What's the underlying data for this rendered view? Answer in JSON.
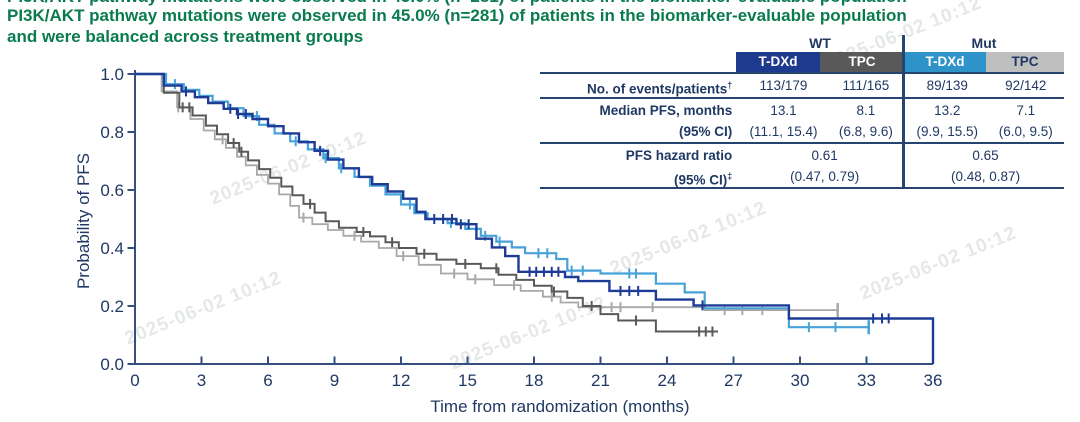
{
  "title": {
    "line1": "PI3K/AKT pathway mutations were observed in 45.0% (n=281) of patients in the biomarker-evaluable population",
    "line2": "and were balanced across treatment groups"
  },
  "watermark": {
    "text": "2025-06-02 10:12"
  },
  "table": {
    "group_headers": [
      {
        "label": "WT"
      },
      {
        "label": "Mut"
      }
    ],
    "col_headers": [
      {
        "label": "T-DXd",
        "bg": "#1e3a8f",
        "fg": "#ffffff"
      },
      {
        "label": "TPC",
        "bg": "#595959",
        "fg": "#ffffff"
      },
      {
        "label": "T-DXd",
        "bg": "#2d93c8",
        "fg": "#ffffff"
      },
      {
        "label": "TPC",
        "bg": "#bfbfbf",
        "fg": "#1f3864"
      }
    ],
    "rows": [
      {
        "label": "No. of events/patients",
        "sup": "†",
        "values": [
          "113/179",
          "111/165",
          "89/139",
          "92/142"
        ]
      },
      {
        "label": "Median PFS, months",
        "label2": "(95% CI)",
        "values": [
          "13.1",
          "8.1",
          "13.2",
          "7.1"
        ],
        "values2": [
          "(11.1, 15.4)",
          "(6.8, 9.6)",
          "(9.9, 15.5)",
          "(6.0, 9.5)"
        ]
      },
      {
        "label": "PFS hazard ratio",
        "label2": "(95% CI)",
        "sup": "‡",
        "values": [
          "0.61",
          "0.65"
        ],
        "values2": [
          "(0.47, 0.79)",
          "(0.48, 0.87)"
        ]
      }
    ]
  },
  "chart_data": {
    "type": "line",
    "subtype": "kaplan-meier-step",
    "title": "",
    "xlabel": "Time from randomization (months)",
    "ylabel": "Probability of PFS",
    "xlim": [
      0,
      36
    ],
    "ylim": [
      0.0,
      1.0
    ],
    "xticks": [
      0,
      3,
      6,
      9,
      12,
      15,
      18,
      21,
      24,
      27,
      30,
      33,
      36
    ],
    "yticks": [
      0.0,
      0.2,
      0.4,
      0.6,
      0.8,
      1.0
    ],
    "grid": false,
    "legend": "none (table serves as legend)",
    "axis_color": "#35507f",
    "label_color": "#1f3864",
    "series": [
      {
        "id": "tpc-mut",
        "name": "TPC (Mut)",
        "color": "#a8a8a8",
        "median_pfs_months": 7.1,
        "points": [
          [
            0,
            1.0
          ],
          [
            1.2,
            0.94
          ],
          [
            1.9,
            0.885
          ],
          [
            2.5,
            0.845
          ],
          [
            3.1,
            0.805
          ],
          [
            3.6,
            0.775
          ],
          [
            4.1,
            0.745
          ],
          [
            4.6,
            0.715
          ],
          [
            5.0,
            0.685
          ],
          [
            5.5,
            0.652
          ],
          [
            6.0,
            0.622
          ],
          [
            6.5,
            0.585
          ],
          [
            7.0,
            0.545
          ],
          [
            7.4,
            0.505
          ],
          [
            8.0,
            0.482
          ],
          [
            8.7,
            0.462
          ],
          [
            9.4,
            0.442
          ],
          [
            10.2,
            0.422
          ],
          [
            11.0,
            0.4
          ],
          [
            11.8,
            0.372
          ],
          [
            12.8,
            0.342
          ],
          [
            13.8,
            0.312
          ],
          [
            15.0,
            0.292
          ],
          [
            16.2,
            0.272
          ],
          [
            17.4,
            0.252
          ],
          [
            18.4,
            0.232
          ],
          [
            19.2,
            0.212
          ],
          [
            20.0,
            0.196
          ],
          [
            25.7,
            0.186
          ]
        ],
        "end": 31.7,
        "end_tick": true,
        "censor_times": [
          1.95,
          3.95,
          7.6,
          9.9,
          12.1,
          14.4,
          15.35,
          17.1,
          18.8,
          21.5,
          21.9,
          23.35,
          26.6,
          27.4,
          28.3
        ]
      },
      {
        "id": "tpc-wt",
        "name": "TPC (WT)",
        "color": "#595959",
        "median_pfs_months": 8.1,
        "points": [
          [
            0,
            1.0
          ],
          [
            1.3,
            0.935
          ],
          [
            2.0,
            0.885
          ],
          [
            2.6,
            0.857
          ],
          [
            3.2,
            0.822
          ],
          [
            3.7,
            0.792
          ],
          [
            4.2,
            0.762
          ],
          [
            4.7,
            0.732
          ],
          [
            5.1,
            0.702
          ],
          [
            5.6,
            0.672
          ],
          [
            6.1,
            0.642
          ],
          [
            6.6,
            0.612
          ],
          [
            7.1,
            0.582
          ],
          [
            7.6,
            0.552
          ],
          [
            8.1,
            0.522
          ],
          [
            8.6,
            0.492
          ],
          [
            9.2,
            0.47
          ],
          [
            10.0,
            0.455
          ],
          [
            10.6,
            0.44
          ],
          [
            11.3,
            0.42
          ],
          [
            11.9,
            0.4
          ],
          [
            12.7,
            0.38
          ],
          [
            13.6,
            0.36
          ],
          [
            14.5,
            0.345
          ],
          [
            15.6,
            0.33
          ],
          [
            16.4,
            0.308
          ],
          [
            17.2,
            0.29
          ],
          [
            18.0,
            0.27
          ],
          [
            18.8,
            0.25
          ],
          [
            19.5,
            0.228
          ],
          [
            20.2,
            0.2
          ],
          [
            21.0,
            0.172
          ],
          [
            21.8,
            0.15
          ],
          [
            23.5,
            0.112
          ]
        ],
        "end": 26.3,
        "end_tick": false,
        "censor_times": [
          2.15,
          2.45,
          4.45,
          4.8,
          7.9,
          10.3,
          11.6,
          13.05,
          14.9,
          16.3,
          18.9,
          20.6,
          22.6,
          25.45,
          25.75,
          26.05
        ]
      },
      {
        "id": "tdxd-mut",
        "name": "T-DXd (Mut)",
        "color": "#46a2d9",
        "median_pfs_months": 13.2,
        "points": [
          [
            0,
            1.0
          ],
          [
            1.4,
            0.965
          ],
          [
            2.2,
            0.945
          ],
          [
            2.9,
            0.925
          ],
          [
            3.5,
            0.905
          ],
          [
            4.2,
            0.882
          ],
          [
            4.9,
            0.855
          ],
          [
            5.6,
            0.825
          ],
          [
            6.3,
            0.795
          ],
          [
            7.0,
            0.768
          ],
          [
            7.8,
            0.74
          ],
          [
            8.5,
            0.71
          ],
          [
            9.2,
            0.675
          ],
          [
            9.9,
            0.645
          ],
          [
            10.6,
            0.615
          ],
          [
            11.3,
            0.585
          ],
          [
            12.0,
            0.55
          ],
          [
            12.6,
            0.52
          ],
          [
            13.2,
            0.5
          ],
          [
            14.1,
            0.486
          ],
          [
            14.9,
            0.466
          ],
          [
            15.6,
            0.442
          ],
          [
            16.3,
            0.422
          ],
          [
            17.0,
            0.402
          ],
          [
            17.6,
            0.382
          ],
          [
            19.0,
            0.362
          ],
          [
            19.5,
            0.322
          ],
          [
            21.0,
            0.312
          ],
          [
            23.5,
            0.277
          ],
          [
            24.8,
            0.247
          ],
          [
            25.7,
            0.192
          ],
          [
            29.5,
            0.127
          ]
        ],
        "end": 33.1,
        "end_tick": true,
        "censor_times": [
          1.8,
          5.5,
          7.25,
          8.6,
          9.3,
          12.4,
          14.25,
          15.8,
          16.45,
          18.2,
          18.6,
          19.7,
          20.2,
          22.3,
          22.6,
          30.4,
          31.6
        ]
      },
      {
        "id": "tdxd-wt",
        "name": "T-DXd (WT)",
        "color": "#1e3b96",
        "median_pfs_months": 13.1,
        "points": [
          [
            0,
            1.0
          ],
          [
            1.3,
            0.96
          ],
          [
            2.1,
            0.94
          ],
          [
            2.7,
            0.92
          ],
          [
            3.3,
            0.9
          ],
          [
            4.0,
            0.88
          ],
          [
            4.6,
            0.862
          ],
          [
            5.3,
            0.845
          ],
          [
            6.0,
            0.82
          ],
          [
            6.7,
            0.795
          ],
          [
            7.4,
            0.765
          ],
          [
            8.1,
            0.735
          ],
          [
            8.7,
            0.705
          ],
          [
            9.4,
            0.675
          ],
          [
            10.1,
            0.645
          ],
          [
            10.7,
            0.62
          ],
          [
            11.4,
            0.595
          ],
          [
            12.1,
            0.57
          ],
          [
            12.7,
            0.525
          ],
          [
            13.1,
            0.5
          ],
          [
            14.5,
            0.482
          ],
          [
            15.4,
            0.432
          ],
          [
            16.1,
            0.402
          ],
          [
            16.7,
            0.372
          ],
          [
            17.3,
            0.318
          ],
          [
            19.4,
            0.3
          ],
          [
            20.0,
            0.286
          ],
          [
            21.4,
            0.252
          ],
          [
            23.5,
            0.222
          ],
          [
            25.2,
            0.202
          ],
          [
            29.5,
            0.157
          ],
          [
            36,
            0.0
          ]
        ],
        "end": 36,
        "end_tick": false,
        "censor_times": [
          2.3,
          4.3,
          4.65,
          5.0,
          8.35,
          13.5,
          13.9,
          14.3,
          14.7,
          15.05,
          17.8,
          18.1,
          18.45,
          18.8,
          19.1,
          21.9,
          22.3,
          22.7,
          25.6,
          33.3,
          33.7,
          34.0
        ]
      }
    ]
  }
}
